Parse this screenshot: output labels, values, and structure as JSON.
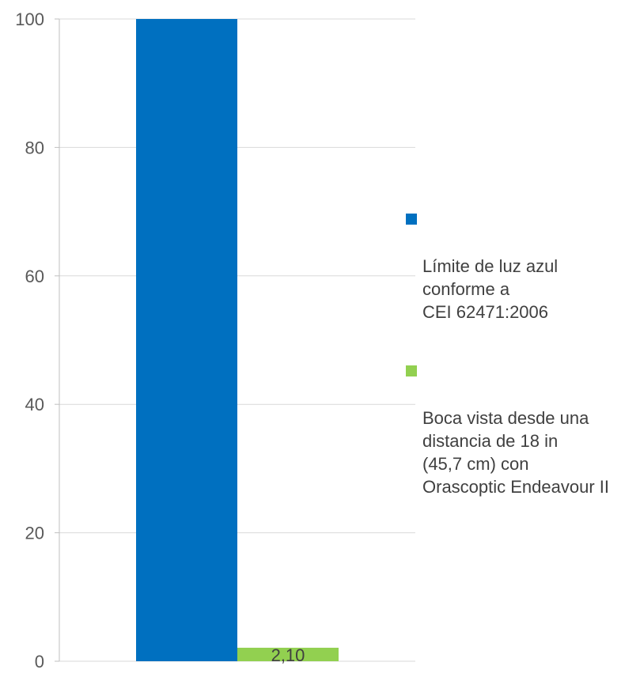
{
  "chart_data": {
    "type": "bar",
    "categories": [
      ""
    ],
    "series": [
      {
        "name": "Límite de luz azul\nconforme a\nCEI 62471:2006",
        "values": [
          100
        ],
        "color": "#0070C0",
        "data_label": ""
      },
      {
        "name": "Boca vista desde una\ndistancia de 18 in\n(45,7 cm) con\nOrascoptic Endeavour II",
        "values": [
          2.1
        ],
        "color": "#92D050",
        "data_label": "2,10"
      }
    ],
    "yticks": [
      "0",
      "20",
      "40",
      "60",
      "80",
      "100"
    ],
    "ylim": [
      0,
      100
    ],
    "grid": true,
    "legend_position": "right",
    "title": "",
    "xlabel": "",
    "ylabel": ""
  }
}
